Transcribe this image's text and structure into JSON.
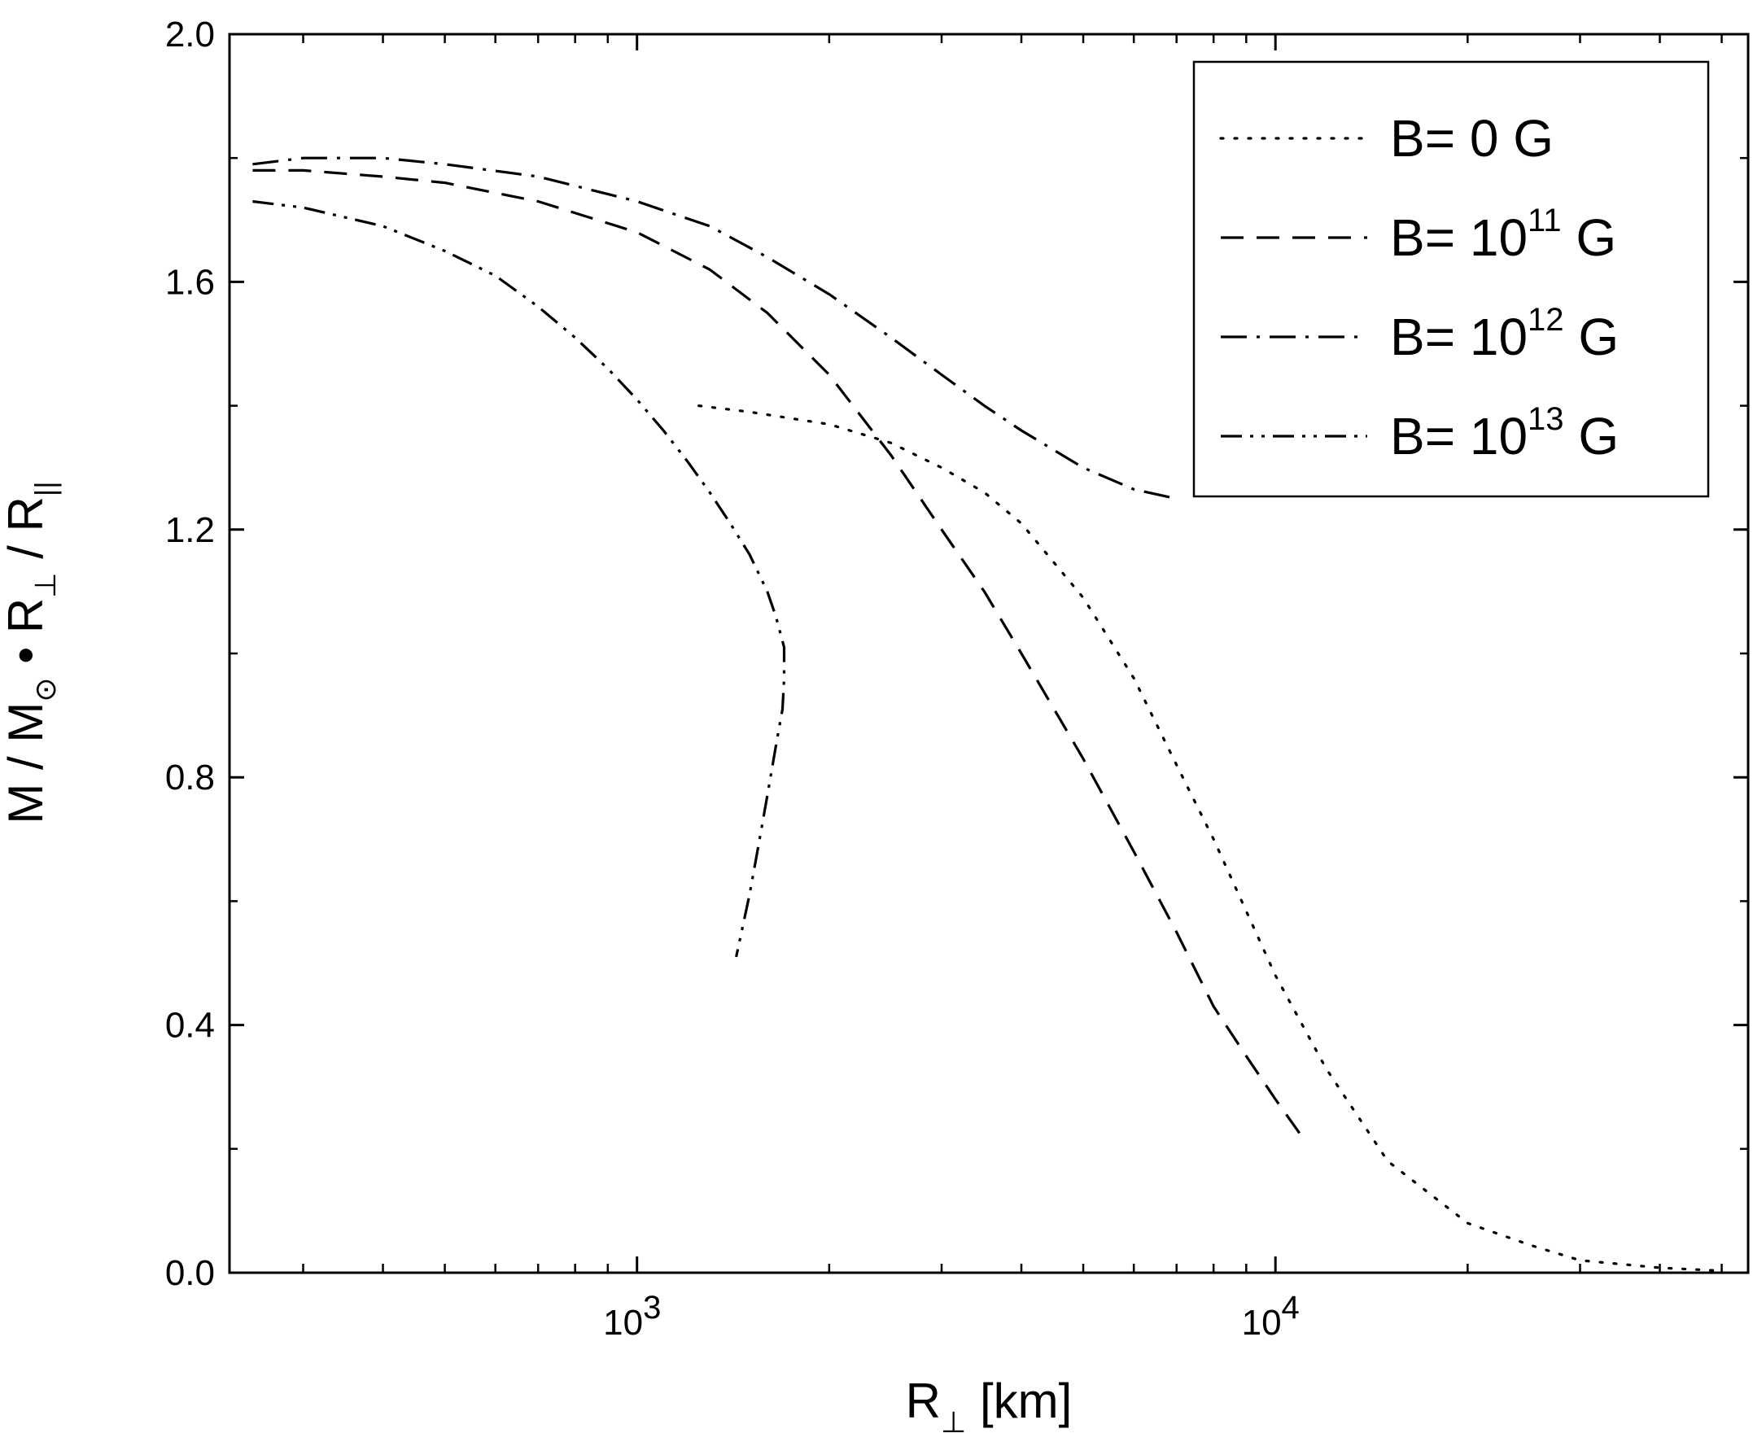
{
  "chart_data": {
    "type": "line",
    "x_scale": "log",
    "xlim": [
      230,
      55000
    ],
    "ylim": [
      0.0,
      2.0
    ],
    "grid": false,
    "legend_placement": "top-right",
    "xlabel": {
      "main": "R",
      "sub": "⊥",
      "rest": " [km]"
    },
    "ylabel": {
      "p1": "M / M",
      "s1": "⊙",
      "p2": " • R",
      "s2": "⊥",
      "p3": " / R",
      "s3": "||"
    },
    "x_ticks": [
      {
        "value": 1000,
        "base": "10",
        "exp": "3"
      },
      {
        "value": 10000,
        "base": "10",
        "exp": "4"
      }
    ],
    "x_minor_ticks": [
      300,
      400,
      500,
      600,
      700,
      800,
      900,
      2000,
      3000,
      4000,
      5000,
      6000,
      7000,
      8000,
      9000,
      20000,
      30000,
      40000,
      50000
    ],
    "y_ticks": [
      {
        "value": 0.0,
        "label": "0.0"
      },
      {
        "value": 0.4,
        "label": "0.4"
      },
      {
        "value": 0.8,
        "label": "0.8"
      },
      {
        "value": 1.2,
        "label": "1.2"
      },
      {
        "value": 1.6,
        "label": "1.6"
      },
      {
        "value": 2.0,
        "label": "2.0"
      }
    ],
    "y_minor_ticks": [
      0.2,
      0.6,
      1.0,
      1.4,
      1.8
    ],
    "series": [
      {
        "name": {
          "prefix": "B= ",
          "base": "0",
          "exp": "",
          "suffix": " G"
        },
        "dash": "dot",
        "x": [
          1250,
          1500,
          2000,
          2500,
          3000,
          3500,
          4000,
          5000,
          6000,
          7000,
          8000,
          10000,
          12000,
          15000,
          20000,
          25000,
          30000,
          40000,
          50000
        ],
        "y": [
          1.4,
          1.39,
          1.37,
          1.34,
          1.3,
          1.26,
          1.21,
          1.09,
          0.96,
          0.82,
          0.7,
          0.48,
          0.33,
          0.18,
          0.08,
          0.045,
          0.02,
          0.008,
          0.003
        ]
      },
      {
        "name": {
          "prefix": "B= ",
          "base": "10",
          "exp": "11",
          "suffix": " G"
        },
        "dash": "dash",
        "x": [
          250,
          300,
          400,
          500,
          700,
          1000,
          1300,
          1600,
          2000,
          2500,
          3000,
          3500,
          4000,
          5000,
          6000,
          7000,
          8000,
          9000,
          10000,
          11000
        ],
        "y": [
          1.78,
          1.78,
          1.77,
          1.76,
          1.73,
          1.68,
          1.62,
          1.55,
          1.45,
          1.32,
          1.2,
          1.1,
          1.0,
          0.83,
          0.68,
          0.55,
          0.43,
          0.35,
          0.28,
          0.22
        ]
      },
      {
        "name": {
          "prefix": "B= ",
          "base": "10",
          "exp": "12",
          "suffix": " G"
        },
        "dash": "dashdot",
        "x": [
          250,
          300,
          400,
          500,
          700,
          1000,
          1300,
          1600,
          2000,
          2500,
          3000,
          3500,
          4000,
          5000,
          6000,
          7000
        ],
        "y": [
          1.79,
          1.8,
          1.8,
          1.79,
          1.77,
          1.73,
          1.69,
          1.64,
          1.58,
          1.51,
          1.45,
          1.4,
          1.36,
          1.3,
          1.265,
          1.25
        ]
      },
      {
        "name": {
          "prefix": "B= ",
          "base": "10",
          "exp": "13",
          "suffix": " G"
        },
        "dash": "dashdotdot",
        "x": [
          250,
          300,
          400,
          500,
          600,
          700,
          800,
          900,
          1000,
          1100,
          1200,
          1300,
          1400,
          1500,
          1600,
          1650,
          1700,
          1700,
          1690,
          1650,
          1600,
          1550,
          1500,
          1430
        ],
        "y": [
          1.73,
          1.72,
          1.69,
          1.65,
          1.61,
          1.56,
          1.51,
          1.46,
          1.41,
          1.36,
          1.31,
          1.26,
          1.21,
          1.16,
          1.1,
          1.06,
          1.01,
          0.96,
          0.91,
          0.85,
          0.77,
          0.69,
          0.61,
          0.51
        ]
      }
    ]
  }
}
